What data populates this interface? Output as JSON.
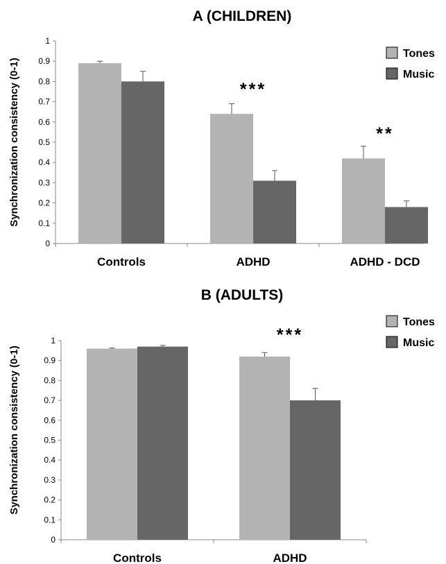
{
  "chart_data": [
    {
      "type": "bar",
      "title": "A (CHILDREN)",
      "ylabel": "Synchronization consistency (0-1)",
      "xlabel": "",
      "ylim": [
        0,
        1
      ],
      "yticks": [
        "0",
        "0.1",
        "0.2",
        "0.3",
        "0.4",
        "0.5",
        "0.6",
        "0.7",
        "0.8",
        "0.9",
        "1"
      ],
      "categories": [
        "Controls",
        "ADHD",
        "ADHD - DCD"
      ],
      "series": [
        {
          "name": "Tones",
          "values": [
            0.89,
            0.64,
            0.42
          ],
          "errors": [
            0.01,
            0.05,
            0.06
          ],
          "color": "#b3b3b3"
        },
        {
          "name": "Music",
          "values": [
            0.8,
            0.31,
            0.18
          ],
          "errors": [
            0.05,
            0.05,
            0.03
          ],
          "color": "#666666"
        }
      ],
      "significance": [
        "",
        "***",
        "**"
      ],
      "grid": false,
      "legend": "top-right"
    },
    {
      "type": "bar",
      "title": "B (ADULTS)",
      "ylabel": "Synchronization consistency (0-1)",
      "xlabel": "",
      "ylim": [
        0,
        1
      ],
      "yticks": [
        "0",
        "0.1",
        "0.2",
        "0.3",
        "0.4",
        "0.5",
        "0.6",
        "0.7",
        "0.8",
        "0.9",
        "1"
      ],
      "categories": [
        "Controls",
        "ADHD"
      ],
      "series": [
        {
          "name": "Tones",
          "values": [
            0.96,
            0.92
          ],
          "errors": [
            0.003,
            0.02
          ],
          "color": "#b3b3b3"
        },
        {
          "name": "Music",
          "values": [
            0.97,
            0.7
          ],
          "errors": [
            0.006,
            0.06
          ],
          "color": "#666666"
        }
      ],
      "significance": [
        "",
        "***"
      ],
      "grid": false,
      "legend": "top-right"
    }
  ]
}
